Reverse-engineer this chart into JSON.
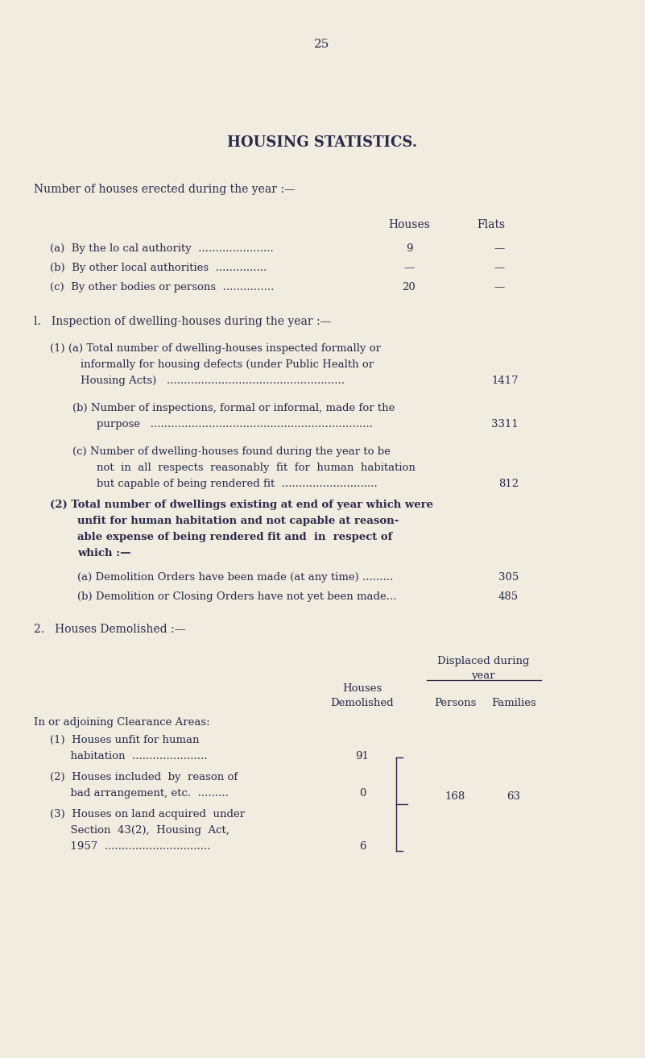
{
  "bg_color": "#f0ece0",
  "text_color": "#2a2a4a",
  "page_number": "25",
  "title": "HOUSING STATISTICS.",
  "section_erected_header": "Number of houses erected during the year :—",
  "col_h1": "Houses",
  "col_h2": "Flats",
  "erected_rows": [
    {
      "label": "(a)  By the lo cal authority  ......................",
      "houses": "9",
      "flats": "—"
    },
    {
      "label": "(b)  By other local authorities  ...............",
      "houses": "—",
      "flats": "—"
    },
    {
      "label": "(c)  By other bodies or persons  ...............",
      "houses": "20",
      "flats": "—"
    }
  ],
  "section1_header": "l.   Inspection of dwelling-houses during the year :—",
  "section2_header": "2.   Houses Demolished :—",
  "displaced_header1": "Displaced during",
  "displaced_header2": "year",
  "col2_demolished": "Houses",
  "col2_demolished2": "Demolished",
  "col2_persons": "Persons",
  "col2_families": "Families",
  "clearance_label": "In or adjoining Clearance Areas:",
  "persons_value": "168",
  "families_value": "63"
}
